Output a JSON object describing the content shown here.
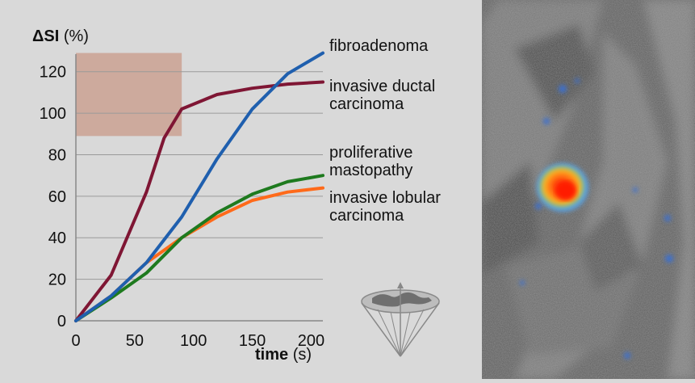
{
  "colors": {
    "fibroadenoma": "#1f5fae",
    "invasive_ductal": "#7f1634",
    "proliferative": "#1e7a1e",
    "invasive_lobular": "#ff6a1a",
    "highlight_box": "#c89a88",
    "background": "#d9d9d9"
  },
  "icons": {
    "globe": "globe-cone-icon"
  },
  "chart_data": {
    "type": "line",
    "ylabel_bold": "ΔSI",
    "ylabel_unit": "(%)",
    "xlabel_bold": "time",
    "xlabel_unit": "(s)",
    "xlim": [
      0,
      210
    ],
    "ylim": [
      0,
      130
    ],
    "xticks": [
      "0",
      "50",
      "100",
      "150",
      "200"
    ],
    "yticks": [
      "0",
      "20",
      "40",
      "60",
      "80",
      "100",
      "120"
    ],
    "xtick_values": [
      0,
      50,
      100,
      150,
      200
    ],
    "ytick_values": [
      0,
      20,
      40,
      60,
      80,
      100,
      120
    ],
    "grid": true,
    "highlight_region": {
      "x": [
        0,
        90
      ],
      "y": [
        89,
        129
      ]
    },
    "series": [
      {
        "name": "fibroadenoma",
        "x": [
          0,
          30,
          60,
          90,
          120,
          150,
          180,
          210
        ],
        "values": [
          0,
          12,
          28,
          50,
          78,
          102,
          119,
          129
        ]
      },
      {
        "name": "invasive ductal\ncarcinoma",
        "x": [
          0,
          30,
          60,
          75,
          90,
          120,
          150,
          180,
          210
        ],
        "values": [
          0,
          22,
          62,
          88,
          102,
          109,
          112,
          114,
          115
        ]
      },
      {
        "name": "proliferative\nmastopathy",
        "x": [
          0,
          30,
          60,
          90,
          120,
          150,
          180,
          210
        ],
        "values": [
          0,
          11,
          23,
          40,
          52,
          61,
          67,
          70
        ]
      },
      {
        "name": "invasive lobular\ncarcinoma",
        "x": [
          0,
          30,
          60,
          90,
          120,
          150,
          180,
          210
        ],
        "values": [
          0,
          12,
          28,
          40,
          50,
          58,
          62,
          64
        ]
      }
    ]
  }
}
